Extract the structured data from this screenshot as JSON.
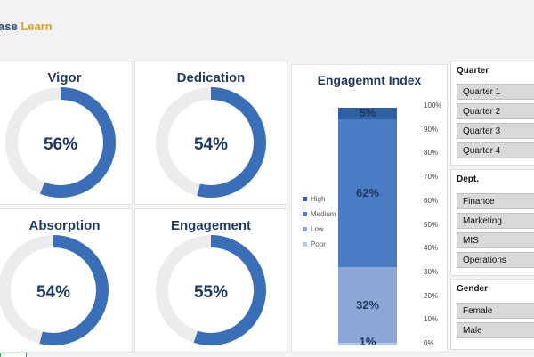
{
  "brand": {
    "part1": "ase",
    "part2": "Learn"
  },
  "cards": [
    {
      "title": "Vigor",
      "value": "56%",
      "pct": 0.56
    },
    {
      "title": "Dedication",
      "value": "54%",
      "pct": 0.54
    },
    {
      "title": "Absorption",
      "value": "54%",
      "pct": 0.54
    },
    {
      "title": "Engagement",
      "value": "55%",
      "pct": 0.55
    }
  ],
  "chart_data": {
    "type": "bar",
    "title": "Engagemnt Index",
    "stacked": true,
    "categories": [
      ""
    ],
    "series": [
      {
        "name": "High",
        "values": [
          5
        ],
        "label": "5%",
        "color": "#2f5fa5"
      },
      {
        "name": "Medium",
        "values": [
          62
        ],
        "label": "62%",
        "color": "#4a7cc4"
      },
      {
        "name": "Low",
        "values": [
          32
        ],
        "label": "32%",
        "color": "#8ea6d6"
      },
      {
        "name": "Poor",
        "values": [
          1
        ],
        "label": "1%",
        "color": "#b9c8e8"
      }
    ],
    "yticks": [
      "100%",
      "90%",
      "80%",
      "70%",
      "60%",
      "50%",
      "40%",
      "30%",
      "20%",
      "10%",
      "0%"
    ],
    "ylim": [
      0,
      100
    ],
    "legend": "left"
  },
  "slicers": {
    "quarter": {
      "title": "Quarter",
      "items": [
        "Quarter 1",
        "Quarter 2",
        "Quarter 3",
        "Quarter 4"
      ]
    },
    "dept": {
      "title": "Dept.",
      "items": [
        "Finance",
        "Marketing",
        "MIS",
        "Operations"
      ]
    },
    "gender": {
      "title": "Gender",
      "items": [
        "Female",
        "Male"
      ]
    }
  },
  "colors": {
    "donut_fill": "#3a6fb8",
    "donut_track": "#ececec",
    "title": "#1f3a5f"
  }
}
